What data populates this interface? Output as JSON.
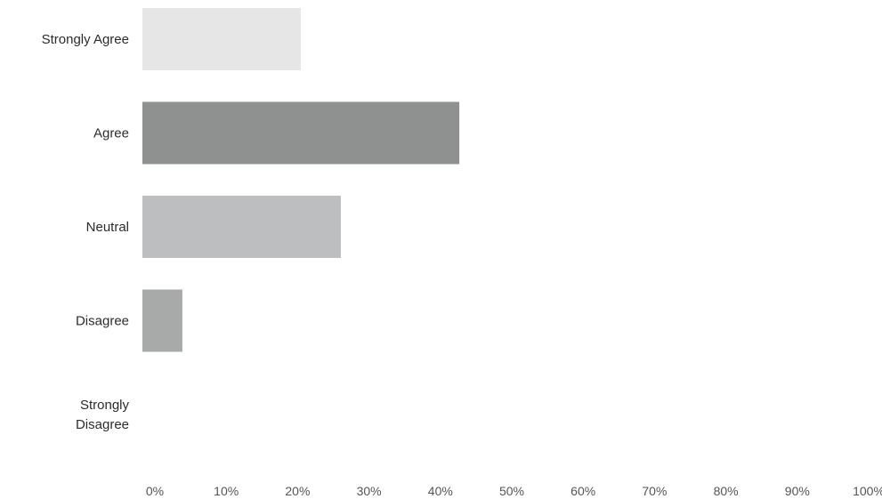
{
  "chart_data": {
    "type": "bar",
    "orientation": "horizontal",
    "categories": [
      [
        "Strongly Agree"
      ],
      [
        "Agree"
      ],
      [
        "Neutral"
      ],
      [
        "Disagree"
      ],
      [
        "Strongly",
        "Disagree"
      ]
    ],
    "values": [
      22.2,
      44.4,
      27.8,
      5.6,
      0
    ],
    "xlim": [
      0,
      100
    ],
    "x_tick_labels": [
      "0%",
      "10%",
      "20%",
      "30%",
      "40%",
      "50%",
      "60%",
      "70%",
      "80%",
      "90%",
      "100%"
    ],
    "colors": [
      "#e6e6e6",
      "#8f9090",
      "#bdbebf",
      "#a8a9a9",
      "#d0d0d0"
    ],
    "title": "",
    "xlabel": "",
    "ylabel": "",
    "grid": false,
    "legend": "none"
  }
}
